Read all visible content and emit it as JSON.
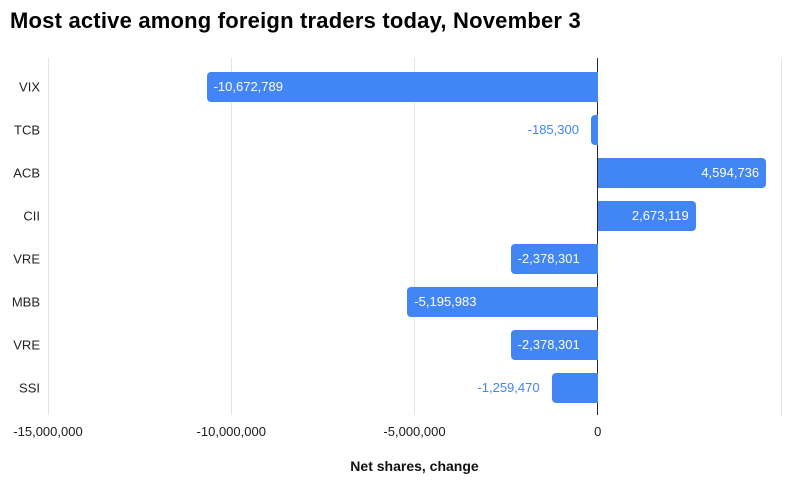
{
  "chart_data": {
    "type": "bar",
    "orientation": "horizontal",
    "title": "Most active among foreign traders today, November 3",
    "xlabel": "Net shares, change",
    "ylabel": "",
    "categories": [
      "VIX",
      "TCB",
      "ACB",
      "CII",
      "VRE",
      "MBB",
      "VRE",
      "SSI"
    ],
    "values": [
      -10672789,
      -185300,
      4594736,
      2673119,
      -2378301,
      -5195983,
      -2378301,
      -1259470
    ],
    "value_labels": [
      "-10,672,789",
      "-185,300",
      "4,594,736",
      "2,673,119",
      "-2,378,301",
      "-5,195,983",
      "-2,378,301",
      "-1,259,470"
    ],
    "xlim": [
      -15000000,
      5000000
    ],
    "x_ticks": [
      {
        "value": -15000000,
        "label": "-15,000,000"
      },
      {
        "value": -10000000,
        "label": "-10,000,000"
      },
      {
        "value": -5000000,
        "label": "-5,000,000"
      },
      {
        "value": 0,
        "label": "0"
      },
      {
        "value": 5000000,
        "label": ""
      }
    ],
    "grid": true,
    "legend": false,
    "colors": {
      "bar": "#4285F4",
      "label_inside": "#FFFFFF",
      "label_outside": "#4285F4",
      "grid": "#E3E3E3",
      "zero_line": "#2B2B2B",
      "text": "#1A1A1A",
      "title": "#000000"
    }
  }
}
